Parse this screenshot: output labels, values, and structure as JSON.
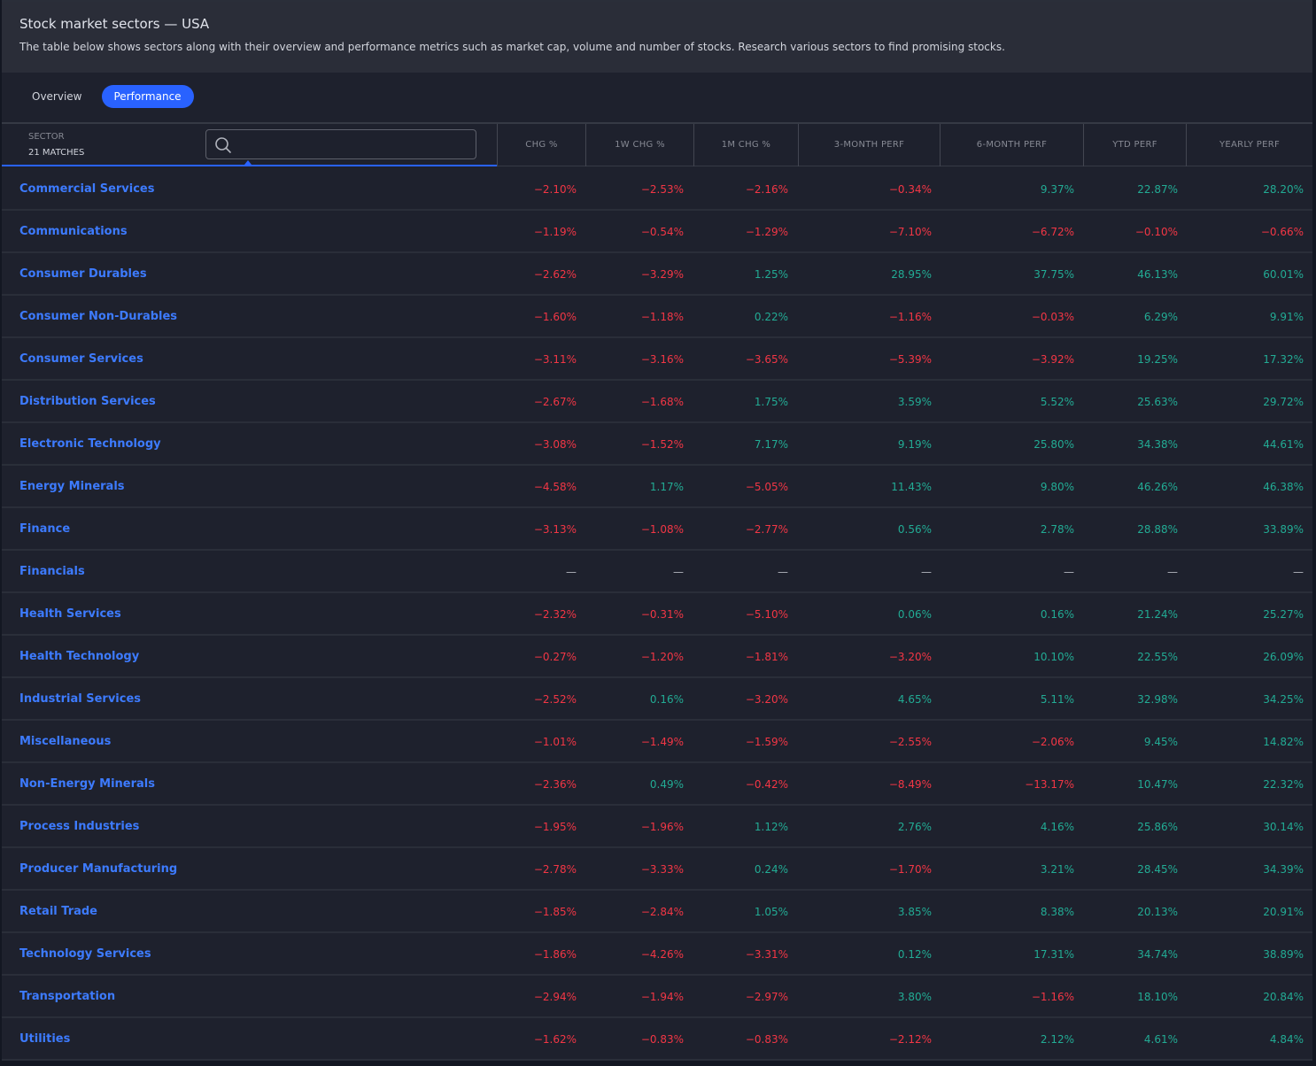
{
  "header": {
    "title": "Stock market sectors — USA",
    "subtitle": "The table below shows sectors along with their overview and performance metrics such as market cap, volume and number of stocks. Research various sectors to find promising stocks."
  },
  "tabs": [
    {
      "label": "Overview",
      "active": false
    },
    {
      "label": "Performance",
      "active": true
    }
  ],
  "table": {
    "sector_header": "SECTOR",
    "matches": "21 MATCHES",
    "search": {
      "placeholder": "",
      "value": "",
      "icon": "search-icon"
    },
    "columns": [
      "CHG %",
      "1W CHG %",
      "1M CHG %",
      "3-MONTH PERF",
      "6-MONTH PERF",
      "YTD PERF",
      "YEARLY PERF"
    ],
    "rows": [
      {
        "name": "Commercial Services",
        "values": [
          "−2.10%",
          "−2.53%",
          "−2.16%",
          "−0.34%",
          "9.37%",
          "22.87%",
          "28.20%"
        ]
      },
      {
        "name": "Communications",
        "values": [
          "−1.19%",
          "−0.54%",
          "−1.29%",
          "−7.10%",
          "−6.72%",
          "−0.10%",
          "−0.66%"
        ]
      },
      {
        "name": "Consumer Durables",
        "values": [
          "−2.62%",
          "−3.29%",
          "1.25%",
          "28.95%",
          "37.75%",
          "46.13%",
          "60.01%"
        ]
      },
      {
        "name": "Consumer Non-Durables",
        "values": [
          "−1.60%",
          "−1.18%",
          "0.22%",
          "−1.16%",
          "−0.03%",
          "6.29%",
          "9.91%"
        ]
      },
      {
        "name": "Consumer Services",
        "values": [
          "−3.11%",
          "−3.16%",
          "−3.65%",
          "−5.39%",
          "−3.92%",
          "19.25%",
          "17.32%"
        ]
      },
      {
        "name": "Distribution Services",
        "values": [
          "−2.67%",
          "−1.68%",
          "1.75%",
          "3.59%",
          "5.52%",
          "25.63%",
          "29.72%"
        ]
      },
      {
        "name": "Electronic Technology",
        "values": [
          "−3.08%",
          "−1.52%",
          "7.17%",
          "9.19%",
          "25.80%",
          "34.38%",
          "44.61%"
        ]
      },
      {
        "name": "Energy Minerals",
        "values": [
          "−4.58%",
          "1.17%",
          "−5.05%",
          "11.43%",
          "9.80%",
          "46.26%",
          "46.38%"
        ]
      },
      {
        "name": "Finance",
        "values": [
          "−3.13%",
          "−1.08%",
          "−2.77%",
          "0.56%",
          "2.78%",
          "28.88%",
          "33.89%"
        ]
      },
      {
        "name": "Financials",
        "values": [
          "—",
          "—",
          "—",
          "—",
          "—",
          "—",
          "—"
        ]
      },
      {
        "name": "Health Services",
        "values": [
          "−2.32%",
          "−0.31%",
          "−5.10%",
          "0.06%",
          "0.16%",
          "21.24%",
          "25.27%"
        ]
      },
      {
        "name": "Health Technology",
        "values": [
          "−0.27%",
          "−1.20%",
          "−1.81%",
          "−3.20%",
          "10.10%",
          "22.55%",
          "26.09%"
        ]
      },
      {
        "name": "Industrial Services",
        "values": [
          "−2.52%",
          "0.16%",
          "−3.20%",
          "4.65%",
          "5.11%",
          "32.98%",
          "34.25%"
        ]
      },
      {
        "name": "Miscellaneous",
        "values": [
          "−1.01%",
          "−1.49%",
          "−1.59%",
          "−2.55%",
          "−2.06%",
          "9.45%",
          "14.82%"
        ]
      },
      {
        "name": "Non-Energy Minerals",
        "values": [
          "−2.36%",
          "0.49%",
          "−0.42%",
          "−8.49%",
          "−13.17%",
          "10.47%",
          "22.32%"
        ]
      },
      {
        "name": "Process Industries",
        "values": [
          "−1.95%",
          "−1.96%",
          "1.12%",
          "2.76%",
          "4.16%",
          "25.86%",
          "30.14%"
        ]
      },
      {
        "name": "Producer Manufacturing",
        "values": [
          "−2.78%",
          "−3.33%",
          "0.24%",
          "−1.70%",
          "3.21%",
          "28.45%",
          "34.39%"
        ]
      },
      {
        "name": "Retail Trade",
        "values": [
          "−1.85%",
          "−2.84%",
          "1.05%",
          "3.85%",
          "8.38%",
          "20.13%",
          "20.91%"
        ]
      },
      {
        "name": "Technology Services",
        "values": [
          "−1.86%",
          "−4.26%",
          "−3.31%",
          "0.12%",
          "17.31%",
          "34.74%",
          "38.89%"
        ]
      },
      {
        "name": "Transportation",
        "values": [
          "−2.94%",
          "−1.94%",
          "−2.97%",
          "3.80%",
          "−1.16%",
          "18.10%",
          "20.84%"
        ]
      },
      {
        "name": "Utilities",
        "values": [
          "−1.62%",
          "−0.83%",
          "−0.83%",
          "−2.12%",
          "2.12%",
          "4.61%",
          "4.84%"
        ]
      }
    ]
  },
  "colors": {
    "accent": "#2962ff",
    "negative": "#f23645",
    "positive": "#22ab94",
    "background": "#1e212d"
  }
}
